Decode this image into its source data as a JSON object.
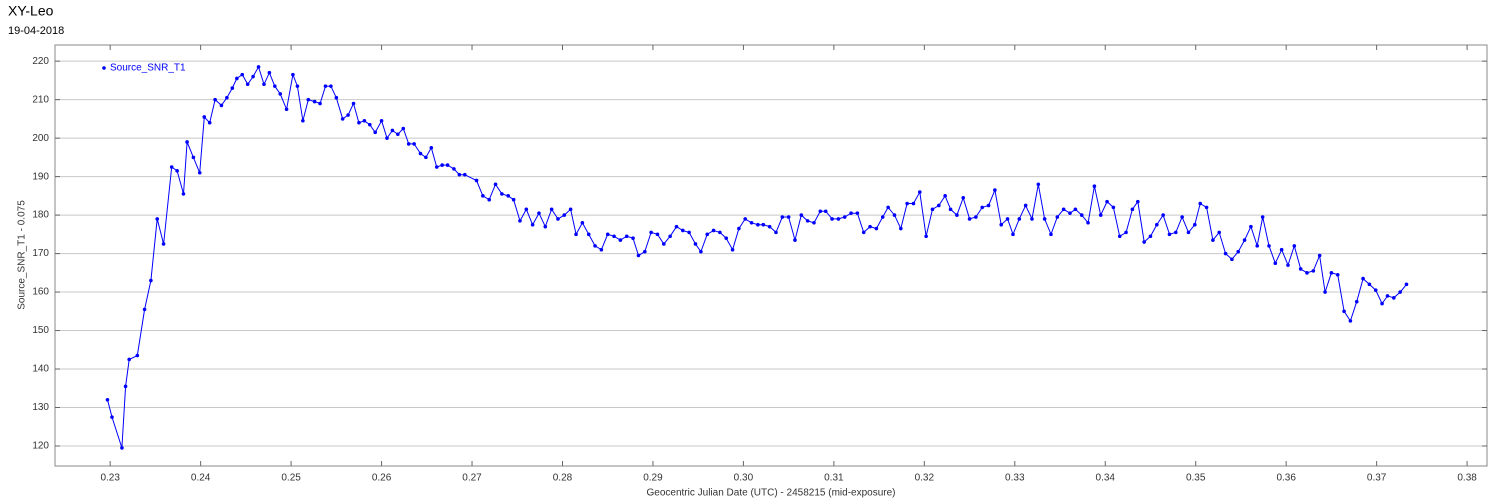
{
  "chart_data": {
    "type": "line",
    "title": "XY-Leo",
    "subtitle": "19-04-2018",
    "x_label": "Geocentric Julian Date (UTC) - 2458215 (mid-exposure)",
    "y_label": "Source_SNR_T1 - 0.075",
    "xlim": [
      0.2239,
      0.3822
    ],
    "ylim": [
      114.8,
      224.2
    ],
    "xticks": [
      0.23,
      0.24,
      0.25,
      0.26,
      0.27,
      0.28,
      0.29,
      {
        "value": 0.3,
        "label": "0.30"
      },
      0.31,
      0.32,
      0.33,
      0.34,
      0.35,
      0.36,
      0.37,
      0.38
    ],
    "yticks": [
      120,
      130,
      140,
      150,
      160,
      170,
      180,
      190,
      200,
      210,
      220
    ],
    "grid": true,
    "legend": "upper left",
    "x": [
      0.2297,
      0.2302,
      0.2313,
      0.2317,
      0.2321,
      0.233,
      0.2338,
      0.2345,
      0.2352,
      0.2359,
      0.2368,
      0.2374,
      0.2381,
      0.2385,
      0.2392,
      0.2399,
      0.2404,
      0.241,
      0.2416,
      0.2423,
      0.2429,
      0.2435,
      0.244,
      0.2446,
      0.2452,
      0.2458,
      0.2464,
      0.247,
      0.2476,
      0.2482,
      0.2488,
      0.2495,
      0.2502,
      0.2507,
      0.2513,
      0.2519,
      0.2526,
      0.2532,
      0.2538,
      0.2544,
      0.255,
      0.2557,
      0.2563,
      0.2569,
      0.2575,
      0.2581,
      0.2587,
      0.2593,
      0.26,
      0.2606,
      0.2612,
      0.2618,
      0.2624,
      0.263,
      0.2636,
      0.2643,
      0.2649,
      0.2655,
      0.2661,
      0.2667,
      0.2673,
      0.268,
      0.2686,
      0.2692,
      0.2705,
      0.2712,
      0.2719,
      0.2726,
      0.2733,
      0.274,
      0.2746,
      0.2753,
      0.276,
      0.2767,
      0.2774,
      0.2781,
      0.2788,
      0.2795,
      0.2802,
      0.2809,
      0.2815,
      0.2822,
      0.2829,
      0.2836,
      0.2843,
      0.285,
      0.2857,
      0.2864,
      0.2871,
      0.2878,
      0.2884,
      0.2891,
      0.2898,
      0.2905,
      0.2912,
      0.2919,
      0.2926,
      0.2933,
      0.294,
      0.2947,
      0.2953,
      0.296,
      0.2967,
      0.2974,
      0.2981,
      0.2988,
      0.2995,
      0.3002,
      0.3009,
      0.3016,
      0.3022,
      0.3029,
      0.3036,
      0.3043,
      0.305,
      0.3057,
      0.3064,
      0.3071,
      0.3078,
      0.3085,
      0.3091,
      0.3098,
      0.3105,
      0.3112,
      0.3119,
      0.3126,
      0.3133,
      0.314,
      0.3147,
      0.3154,
      0.316,
      0.3167,
      0.3174,
      0.3181,
      0.3188,
      0.3195,
      0.3202,
      0.3209,
      0.3216,
      0.3223,
      0.3229,
      0.3236,
      0.3243,
      0.325,
      0.3257,
      0.3264,
      0.3271,
      0.3278,
      0.3285,
      0.3292,
      0.3298,
      0.3305,
      0.3312,
      0.3319,
      0.3326,
      0.3333,
      0.334,
      0.3347,
      0.3354,
      0.3361,
      0.3367,
      0.3374,
      0.3381,
      0.3388,
      0.3395,
      0.3402,
      0.3409,
      0.3416,
      0.3423,
      0.343,
      0.3436,
      0.3443,
      0.345,
      0.3457,
      0.3464,
      0.3471,
      0.3478,
      0.3485,
      0.3492,
      0.3499,
      0.3505,
      0.3512,
      0.3519,
      0.3526,
      0.3533,
      0.354,
      0.3547,
      0.3554,
      0.3561,
      0.3568,
      0.3574,
      0.3581,
      0.3588,
      0.3595,
      0.3602,
      0.3609,
      0.3616,
      0.3623,
      0.363,
      0.3637,
      0.3643,
      0.365,
      0.3657,
      0.3664,
      0.3671,
      0.3678,
      0.3685,
      0.3692,
      0.3699,
      0.3706,
      0.3712,
      0.3719,
      0.3726,
      0.3733
    ],
    "series": [
      {
        "name": "Source_SNR_T1",
        "color": "#0000ff",
        "values": [
          132,
          127.5,
          119.5,
          135.5,
          142.5,
          143.5,
          155.5,
          163,
          179,
          172.5,
          192.5,
          191.5,
          185.5,
          199,
          195,
          191,
          205.5,
          204,
          210,
          208.5,
          210.5,
          213,
          215.5,
          216.5,
          214,
          216,
          218.5,
          214,
          217,
          213.5,
          211.5,
          207.5,
          216.5,
          213.5,
          204.5,
          210,
          209.5,
          209,
          213.5,
          213.5,
          210.5,
          205,
          206,
          209,
          204,
          204.5,
          203.5,
          201.5,
          204.5,
          200,
          202,
          201,
          202.5,
          198.5,
          198.5,
          196,
          195,
          197.5,
          192.5,
          193,
          193,
          192,
          190.5,
          190.5,
          189,
          185,
          184,
          188,
          185.5,
          185,
          184,
          178.5,
          181.5,
          177.5,
          180.5,
          177,
          181.5,
          179,
          180,
          181.5,
          175,
          178,
          175,
          172,
          171,
          175,
          174.5,
          173.5,
          174.5,
          174,
          169.5,
          170.5,
          175.5,
          175,
          172.5,
          174.5,
          177,
          176,
          175.5,
          172.5,
          170.5,
          175,
          176,
          175.5,
          174,
          171,
          176.5,
          179,
          178,
          177.5,
          177.5,
          177,
          175.5,
          179.5,
          179.5,
          173.5,
          180,
          178.5,
          178,
          181,
          181,
          179,
          179,
          179.5,
          180.5,
          180.5,
          175.5,
          177,
          176.5,
          179.5,
          182,
          180,
          176.5,
          183,
          183,
          186,
          174.5,
          181.5,
          182.5,
          185,
          181.5,
          180,
          184.5,
          179,
          179.5,
          182,
          182.5,
          186.5,
          177.5,
          179,
          175,
          179,
          182.5,
          179,
          188,
          179,
          175,
          179.5,
          181.5,
          180.5,
          181.5,
          180,
          178,
          187.5,
          180,
          183.5,
          182,
          174.5,
          175.5,
          181.5,
          183.5,
          173,
          174.5,
          177.5,
          180,
          175,
          175.5,
          179.5,
          175.5,
          177.5,
          183,
          182,
          173.5,
          175.5,
          170,
          168.5,
          170.5,
          173.5,
          177,
          172,
          179.5,
          172,
          167.5,
          171,
          167,
          172,
          166,
          165,
          165.5,
          169.5,
          160,
          165,
          164.5,
          155,
          152.5,
          157.5,
          163.5,
          162,
          160.5,
          157,
          159,
          158.5,
          160,
          162
        ]
      }
    ]
  }
}
